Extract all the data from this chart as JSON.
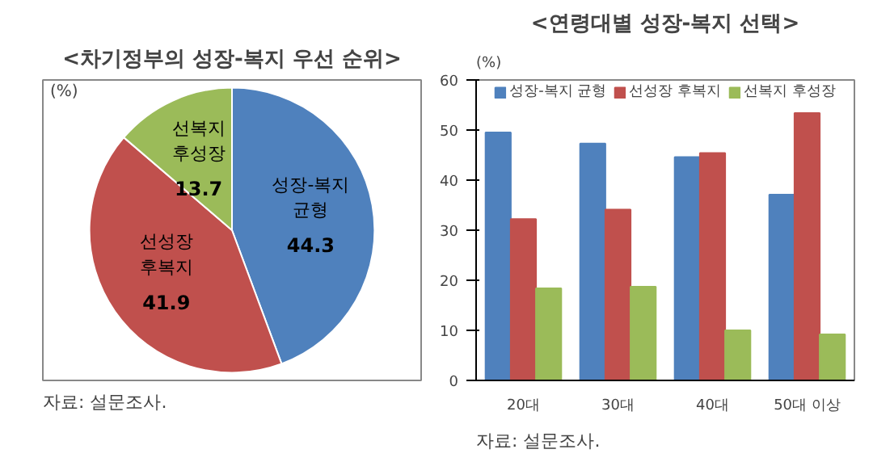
{
  "chart_data": [
    {
      "type": "pie",
      "title": "<차기정부의 성장-복지 우선 순위>",
      "subtitle": "(%)",
      "categories": [
        "성장-복지 균형",
        "선성장 후복지",
        "선복지 후성장"
      ],
      "values": [
        44.3,
        41.9,
        13.7
      ],
      "colors": [
        "#4f81bd",
        "#c0504d",
        "#9bbb59"
      ],
      "data_labels": true,
      "annotations": [
        "자료: 설문조사."
      ]
    },
    {
      "type": "bar",
      "title": "<연령대별 성장-복지 선택>",
      "ylabel": "(%)",
      "categories": [
        "20대",
        "30대",
        "40대",
        "50대 이상"
      ],
      "series": [
        {
          "name": "성장-복지 균형",
          "color": "#4f81bd",
          "values": [
            49.5,
            47.3,
            44.6,
            37.1
          ]
        },
        {
          "name": "선성장 후복지",
          "color": "#c0504d",
          "values": [
            32.2,
            34.1,
            45.4,
            53.4
          ]
        },
        {
          "name": "선복지 후성장",
          "color": "#9bbb59",
          "values": [
            18.4,
            18.7,
            10.0,
            9.2
          ]
        }
      ],
      "ylim": [
        0,
        60
      ],
      "yticks": [
        0,
        10,
        20,
        30,
        40,
        50,
        60
      ],
      "grid": false,
      "legend": "top",
      "annotations": [
        "자료: 설문조사."
      ]
    }
  ]
}
